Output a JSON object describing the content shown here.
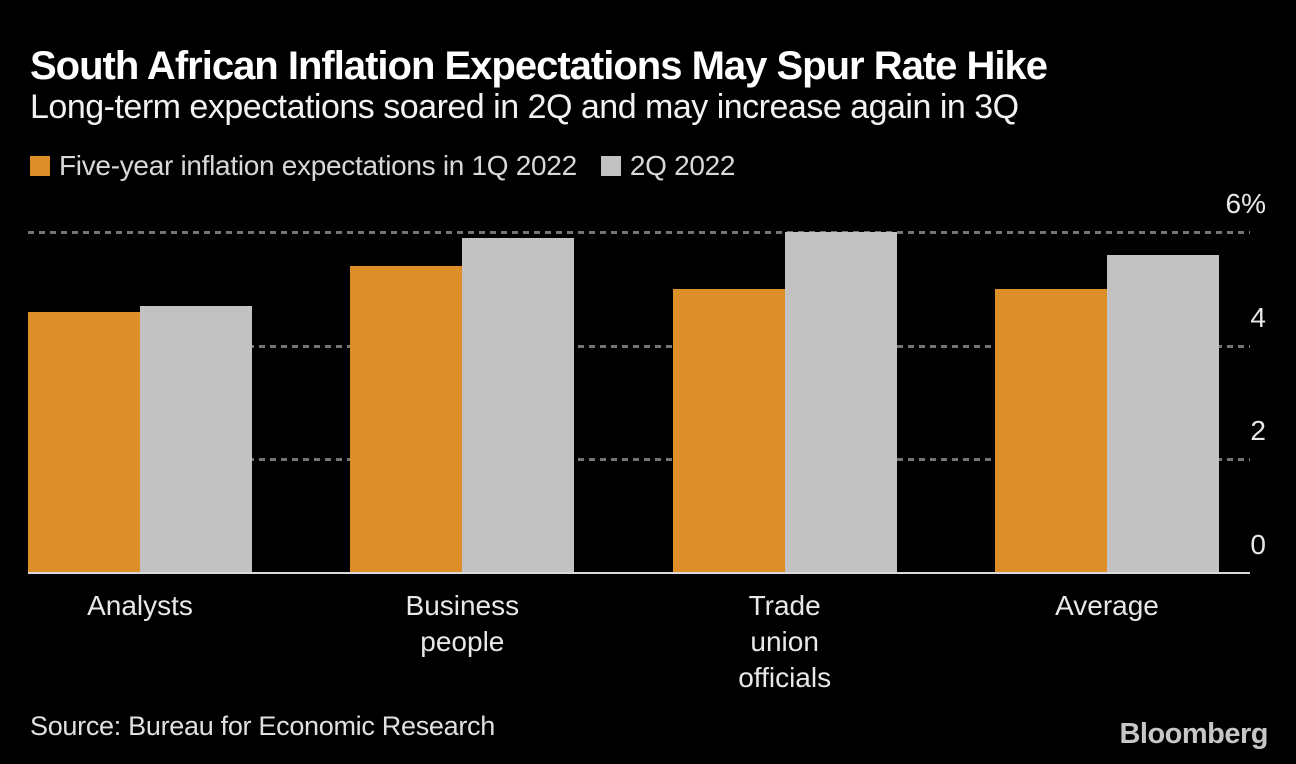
{
  "header": {
    "title": "South African Inflation Expectations May Spur Rate Hike",
    "subtitle": "Long-term expectations soared in 2Q and may increase again in 3Q"
  },
  "legend": {
    "items": [
      {
        "key": "1q-2022",
        "label": "Five-year inflation expectations in 1Q 2022",
        "color": "#DD8E29"
      },
      {
        "key": "2q-2022",
        "label": "2Q 2022",
        "color": "#C2C2C2"
      }
    ]
  },
  "chart_data": {
    "type": "bar",
    "title": "South African Inflation Expectations May Spur Rate Hike",
    "subtitle": "Long-term expectations soared in 2Q and may increase again in 3Q",
    "categories": [
      "Analysts",
      "Business people",
      "Trade union officials",
      "Average"
    ],
    "category_lines": [
      [
        "Analysts"
      ],
      [
        "Business",
        "people"
      ],
      [
        "Trade",
        "union",
        "officials"
      ],
      [
        "Average"
      ]
    ],
    "series": [
      {
        "name": "Five-year inflation expectations in 1Q 2022",
        "color": "#DD8E29",
        "values": [
          4.6,
          5.4,
          5.0,
          5.0
        ]
      },
      {
        "name": "2Q 2022",
        "color": "#C2C2C2",
        "values": [
          4.7,
          5.9,
          6.0,
          5.6
        ]
      }
    ],
    "unit": "%",
    "ylim": [
      0,
      6
    ],
    "yticks": [
      0,
      2,
      4,
      6
    ],
    "ytick_labels": [
      "0",
      "2",
      "4",
      "6%"
    ],
    "grid": "horizontal-dashed",
    "legend_position": "top-left",
    "axis_side": "right"
  },
  "footer": {
    "source": "Source: Bureau for Economic Research",
    "brand": "Bloomberg"
  },
  "colors": {
    "background": "#000000",
    "title_text": "#FFFFFF",
    "subtitle_text": "#F2F2F2",
    "legend_text": "#D8D8D8",
    "bar_1q_2022": "#DD8E29",
    "bar_2q_2022": "#C2C2C2",
    "gridline": "#757575",
    "axis_tick_text": "#E8E8E8",
    "category_text": "#E8E8E8",
    "baseline": "#DADADA",
    "source_text": "#E0E0E0",
    "brand_text": "#C6C6C6"
  }
}
